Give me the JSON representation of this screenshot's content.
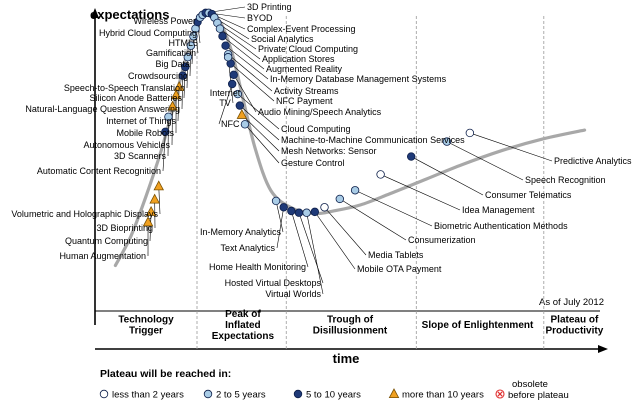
{
  "chart_data": {
    "type": "scatter",
    "title": "",
    "ylabel": "expectations",
    "xlabel": "time",
    "as_of": "As of July 2012",
    "xlim": [
      0,
      100
    ],
    "ylim": [
      0,
      100
    ],
    "colors": {
      "curve": "#a8a8a8",
      "lt2": "#ffffff",
      "2to5": "#a9cce6",
      "5to10": "#1f3a78",
      "gt10": "#f0a020",
      "obsolete": "#e03030",
      "axis": "#000000",
      "dashed": "#9a9a9a"
    },
    "phases": [
      {
        "name": "Technology\nTrigger",
        "x": 10
      },
      {
        "name": "Peak of\nInflated\nExpectations",
        "x": 29
      },
      {
        "name": "Trough of\nDisillusionment",
        "x": 50
      },
      {
        "name": "Slope of Enlightenment",
        "x": 75
      },
      {
        "name": "Plateau of\nProductivity",
        "x": 94
      }
    ],
    "phase_bounds": [
      20,
      37.5,
      63,
      88
    ],
    "legend": {
      "title": "Plateau will be reached in:",
      "items": [
        {
          "key": "lt2",
          "label": "less than 2 years"
        },
        {
          "key": "2to5",
          "label": "2 to 5 years"
        },
        {
          "key": "5to10",
          "label": "5 to 10 years"
        },
        {
          "key": "gt10",
          "label": "more than 10 years"
        },
        {
          "key": "obsolete",
          "label": "obsolete\nbefore plateau"
        }
      ]
    },
    "curve": [
      [
        4,
        12
      ],
      [
        7,
        22
      ],
      [
        10,
        36
      ],
      [
        13,
        52
      ],
      [
        15.5,
        68
      ],
      [
        17.5,
        82
      ],
      [
        19.2,
        92
      ],
      [
        20.5,
        97.5
      ],
      [
        21.8,
        99.3
      ],
      [
        23.3,
        99
      ],
      [
        25,
        95
      ],
      [
        27,
        85
      ],
      [
        29,
        70
      ],
      [
        31.5,
        52
      ],
      [
        34.5,
        38
      ],
      [
        38.5,
        32
      ],
      [
        43,
        30
      ],
      [
        47,
        31
      ],
      [
        52,
        33
      ],
      [
        58,
        37
      ],
      [
        65,
        42
      ],
      [
        72,
        47
      ],
      [
        80,
        52
      ],
      [
        88,
        56
      ],
      [
        96,
        59
      ]
    ],
    "series": [
      {
        "name": "Human Augmentation",
        "x": 10.4,
        "y": 27.0,
        "cat": "gt10",
        "side": "left"
      },
      {
        "name": "Quantum Computing",
        "x": 11.0,
        "y": 30.6,
        "cat": "gt10",
        "side": "left"
      },
      {
        "name": "3D Bioprinting",
        "x": 11.7,
        "y": 34.9,
        "cat": "gt10",
        "side": "left"
      },
      {
        "name": "Volumetric and Holographic Displays",
        "x": 12.5,
        "y": 39.5,
        "cat": "gt10",
        "side": "left"
      },
      {
        "name": "Automatic Content Recognition",
        "x": 13.8,
        "y": 58.4,
        "cat": "5to10",
        "side": "left"
      },
      {
        "name": "3D Scanners",
        "x": 14.4,
        "y": 63.6,
        "cat": "2to5",
        "side": "left"
      },
      {
        "name": "Autonomous Vehicles",
        "x": 15.2,
        "y": 67.2,
        "cat": "gt10",
        "side": "left"
      },
      {
        "name": "Mobile Robots",
        "x": 15.9,
        "y": 71.1,
        "cat": "gt10",
        "side": "left"
      },
      {
        "name": "Internet of Things",
        "x": 16.5,
        "y": 74.0,
        "cat": "gt10",
        "side": "left"
      },
      {
        "name": "Natural-Language Question Answering",
        "x": 17.2,
        "y": 77.9,
        "cat": "5to10",
        "side": "left"
      },
      {
        "name": "Silicon Anode Batteries",
        "x": 17.7,
        "y": 80.9,
        "cat": "5to10",
        "side": "left"
      },
      {
        "name": "Speech-to-Speech Translation",
        "x": 18.2,
        "y": 84.3,
        "cat": "2to5",
        "side": "left"
      },
      {
        "name": "Crowdsourcing",
        "x": 18.8,
        "y": 88.3,
        "cat": "2to5",
        "side": "left"
      },
      {
        "name": "Big Data",
        "x": 19.3,
        "y": 91.6,
        "cat": "2to5",
        "side": "left"
      },
      {
        "name": "Gamification",
        "x": 19.7,
        "y": 94.2,
        "cat": "2to5",
        "side": "left"
      },
      {
        "name": "HTML5",
        "x": 20.1,
        "y": 96.5,
        "cat": "5to10",
        "side": "left"
      },
      {
        "name": "Hybrid Cloud Computing",
        "x": 20.6,
        "y": 98.1,
        "cat": "2to5",
        "side": "left"
      },
      {
        "name": "Wireless Power",
        "x": 21.1,
        "y": 99.0,
        "cat": "2to5",
        "side": "left"
      },
      {
        "name": "3D Printing",
        "x": 21.7,
        "y": 99.7,
        "cat": "5to10",
        "side": "right"
      },
      {
        "name": "BYOD",
        "x": 22.3,
        "y": 99.7,
        "cat": "2to5",
        "side": "right"
      },
      {
        "name": "Complex-Event Processing",
        "x": 22.9,
        "y": 99.3,
        "cat": "5to10",
        "side": "right"
      },
      {
        "name": "Social Analytics",
        "x": 23.4,
        "y": 98.1,
        "cat": "2to5",
        "side": "right"
      },
      {
        "name": "Private Cloud Computing",
        "x": 24.0,
        "y": 96.2,
        "cat": "2to5",
        "side": "right"
      },
      {
        "name": "Application Stores",
        "x": 24.5,
        "y": 94.2,
        "cat": "2to5",
        "side": "right"
      },
      {
        "name": "Augmented Reality",
        "x": 25.0,
        "y": 91.6,
        "cat": "5to10",
        "side": "right"
      },
      {
        "name": "In-Memory Database Management Systems",
        "x": 25.6,
        "y": 88.3,
        "cat": "5to10",
        "side": "right"
      },
      {
        "name": "Activity Streams",
        "x": 26.1,
        "y": 85.3,
        "cat": "2to5",
        "side": "right"
      },
      {
        "name": "NFC Payment",
        "x": 26.6,
        "y": 82.1,
        "cat": "5to10",
        "side": "right"
      },
      {
        "name": "Audio Mining/Speech Analytics",
        "x": 27.2,
        "y": 78.2,
        "cat": "5to10",
        "side": "right"
      },
      {
        "name": "Internet TV",
        "x": 26.1,
        "y": 84.3,
        "cat": "2to5",
        "side": "left"
      },
      {
        "name": "NFC",
        "x": 26.9,
        "y": 75.0,
        "cat": "5to10",
        "side": "left"
      },
      {
        "name": "Cloud Computing",
        "x": 28.0,
        "y": 71.5,
        "cat": "2to5",
        "side": "right"
      },
      {
        "name": "Machine-to-Machine Communication Services",
        "x": 28.4,
        "y": 67.5,
        "cat": "5to10",
        "side": "right"
      },
      {
        "name": "Mesh Networks: Sensor",
        "x": 28.8,
        "y": 64.3,
        "cat": "gt10",
        "side": "right"
      },
      {
        "name": "Gesture Control",
        "x": 29.4,
        "y": 61.0,
        "cat": "2to5",
        "side": "right"
      },
      {
        "name": "In-Memory Analytics",
        "x": 35.5,
        "y": 34.4,
        "cat": "2to5",
        "side": "left"
      },
      {
        "name": "Text Analytics",
        "x": 37.0,
        "y": 32.2,
        "cat": "5to10",
        "side": "left"
      },
      {
        "name": "Home Health Monitoring",
        "x": 38.5,
        "y": 30.9,
        "cat": "5to10",
        "side": "left"
      },
      {
        "name": "Hosted Virtual Desktops",
        "x": 40.0,
        "y": 30.3,
        "cat": "5to10",
        "side": "left"
      },
      {
        "name": "Virtual Worlds",
        "x": 41.5,
        "y": 30.3,
        "cat": "2to5",
        "side": "left"
      },
      {
        "name": "Mobile OTA Payment",
        "x": 43.1,
        "y": 30.6,
        "cat": "5to10",
        "side": "right"
      },
      {
        "name": "Media Tablets",
        "x": 45.0,
        "y": 32.2,
        "cat": "lt2",
        "side": "right"
      },
      {
        "name": "Consumerization",
        "x": 48.0,
        "y": 35.1,
        "cat": "2to5",
        "side": "right"
      },
      {
        "name": "Biometric Authentication Methods",
        "x": 51.0,
        "y": 38.1,
        "cat": "2to5",
        "side": "right"
      },
      {
        "name": "Idea Management",
        "x": 56.0,
        "y": 43.6,
        "cat": "lt2",
        "side": "right"
      },
      {
        "name": "Consumer Telematics",
        "x": 62.0,
        "y": 49.8,
        "cat": "5to10",
        "side": "right"
      },
      {
        "name": "Speech Recognition",
        "x": 69.0,
        "y": 55.0,
        "cat": "2to5",
        "side": "right"
      },
      {
        "name": "Predictive Analytics",
        "x": 73.5,
        "y": 58.0,
        "cat": "lt2",
        "side": "right"
      }
    ]
  }
}
